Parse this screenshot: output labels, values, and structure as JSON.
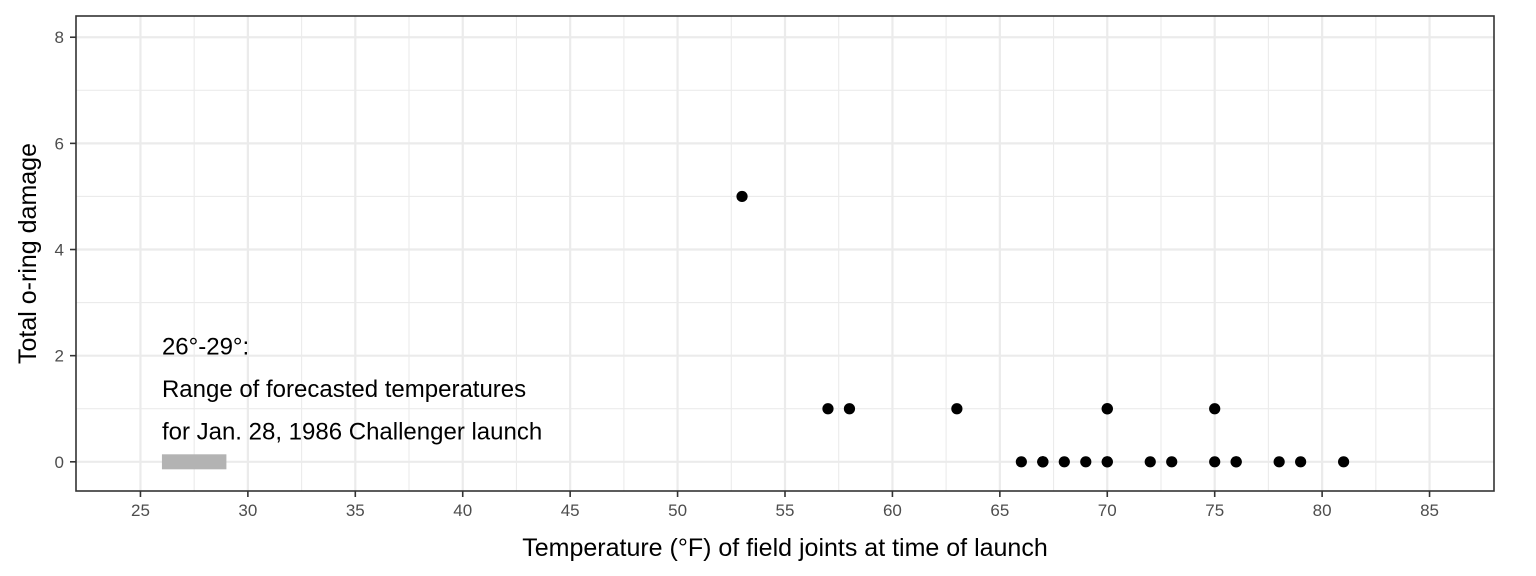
{
  "chart_data": {
    "type": "scatter",
    "title": "",
    "xlabel": "Temperature (°F) of field joints at time of launch",
    "ylabel": "Total o-ring damage",
    "xlim": [
      22,
      88
    ],
    "ylim": [
      -0.55,
      8.4
    ],
    "xticks": [
      25,
      30,
      35,
      40,
      45,
      50,
      55,
      60,
      65,
      70,
      75,
      80,
      85
    ],
    "yticks": [
      0,
      2,
      4,
      6,
      8
    ],
    "grid": true,
    "legend": "none",
    "point_color": "#000000",
    "points": [
      {
        "x": 53,
        "y": 5
      },
      {
        "x": 57,
        "y": 1
      },
      {
        "x": 58,
        "y": 1
      },
      {
        "x": 63,
        "y": 1
      },
      {
        "x": 66,
        "y": 0
      },
      {
        "x": 67,
        "y": 0
      },
      {
        "x": 67,
        "y": 0
      },
      {
        "x": 67,
        "y": 0
      },
      {
        "x": 68,
        "y": 0
      },
      {
        "x": 69,
        "y": 0
      },
      {
        "x": 70,
        "y": 0
      },
      {
        "x": 70,
        "y": 0
      },
      {
        "x": 70,
        "y": 1
      },
      {
        "x": 70,
        "y": 1
      },
      {
        "x": 72,
        "y": 0
      },
      {
        "x": 73,
        "y": 0
      },
      {
        "x": 75,
        "y": 0
      },
      {
        "x": 75,
        "y": 1
      },
      {
        "x": 76,
        "y": 0
      },
      {
        "x": 76,
        "y": 0
      },
      {
        "x": 78,
        "y": 0
      },
      {
        "x": 79,
        "y": 0
      },
      {
        "x": 81,
        "y": 0
      }
    ],
    "forecast_range": {
      "x_start": 26,
      "x_end": 29,
      "y": 0,
      "color": "#b3b3b3"
    },
    "annotation": {
      "lines": [
        "26°-29°:",
        "Range of forecasted temperatures",
        "for Jan. 28, 1986 Challenger launch"
      ],
      "x": 26,
      "y": 2
    }
  }
}
